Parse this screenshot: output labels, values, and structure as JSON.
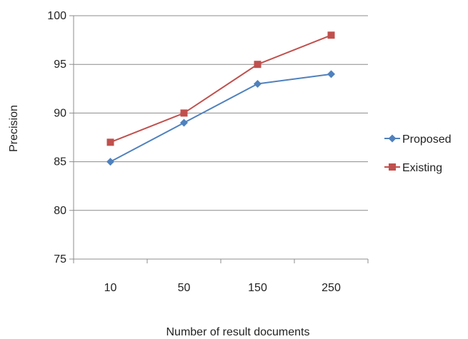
{
  "chart_data": {
    "type": "line",
    "title": "",
    "xlabel": "Number of result documents",
    "ylabel": "Precision",
    "categories": [
      "10",
      "50",
      "150",
      "250"
    ],
    "yticks": [
      "75",
      "80",
      "85",
      "90",
      "95",
      "100"
    ],
    "ylim": [
      75,
      100
    ],
    "grid": "horizontal",
    "legend_position": "right",
    "series": [
      {
        "name": "Proposed",
        "values": [
          85,
          89,
          93,
          94
        ],
        "color": "#4f81bd",
        "marker": "diamond"
      },
      {
        "name": "Existing",
        "values": [
          87,
          90,
          95,
          98
        ],
        "color": "#c0504d",
        "marker": "square"
      }
    ]
  }
}
